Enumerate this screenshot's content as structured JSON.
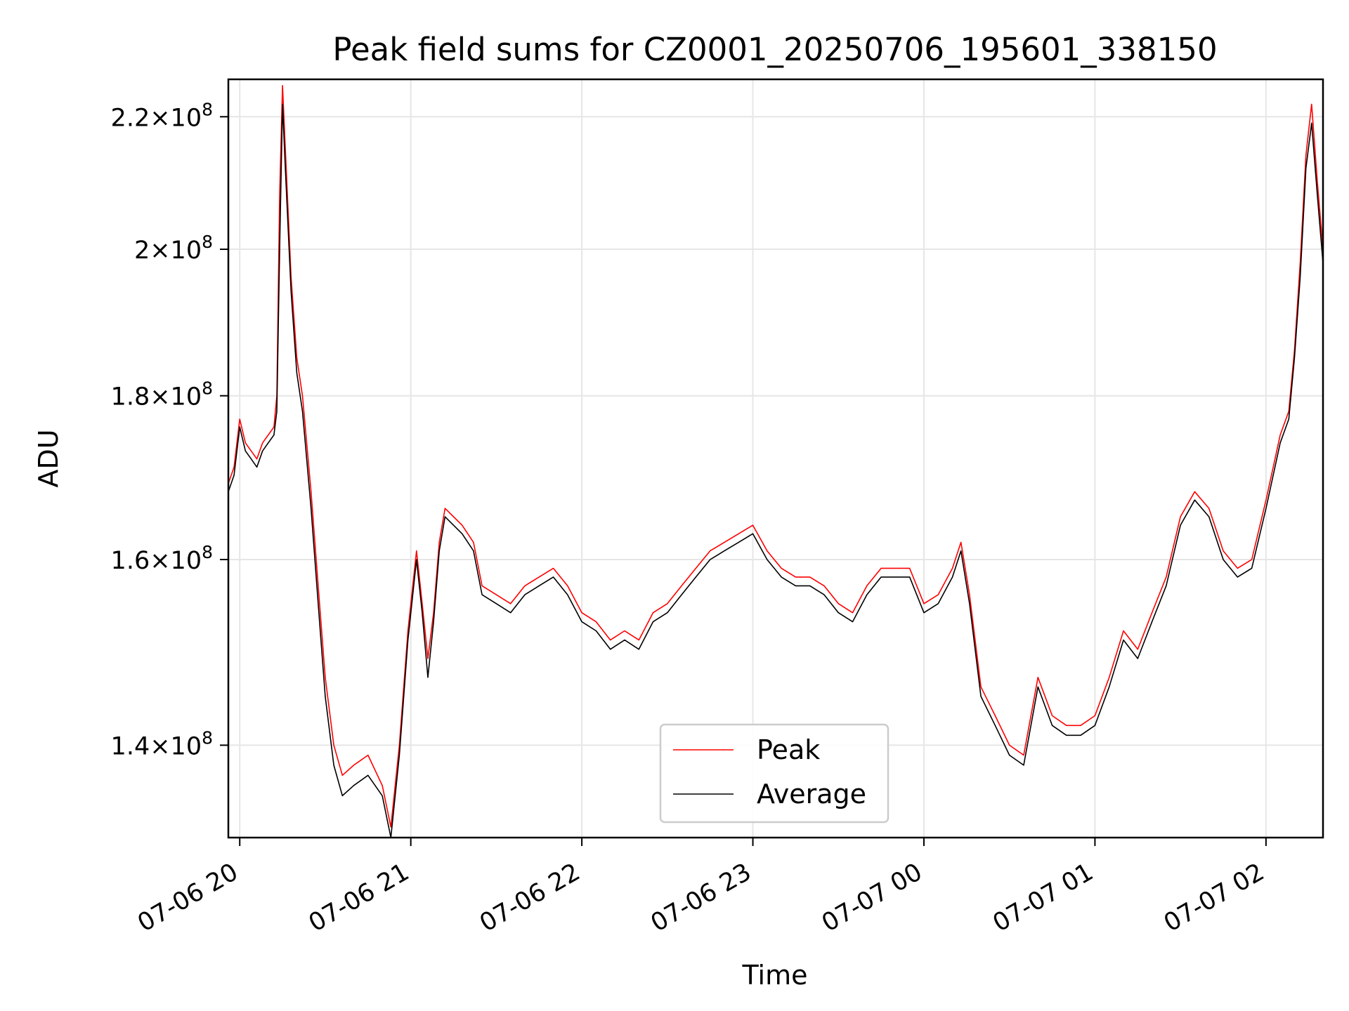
{
  "chart_data": {
    "type": "line",
    "title": "Peak field sums for CZ0001_20250706_195601_338150",
    "xlabel": "Time",
    "ylabel": "ADU",
    "yscale": "log",
    "xlim": [
      "2025-07-06 19:56",
      "2025-07-07 02:20"
    ],
    "ylim": [
      131000000,
      226000000
    ],
    "grid": true,
    "legend_position": "lower center",
    "x_ticks": [
      {
        "value": "2025-07-06 20:00",
        "label": "07-06 20"
      },
      {
        "value": "2025-07-06 21:00",
        "label": "07-06 21"
      },
      {
        "value": "2025-07-06 22:00",
        "label": "07-06 22"
      },
      {
        "value": "2025-07-06 23:00",
        "label": "07-06 23"
      },
      {
        "value": "2025-07-07 00:00",
        "label": "07-07 00"
      },
      {
        "value": "2025-07-07 01:00",
        "label": "07-07 01"
      },
      {
        "value": "2025-07-07 02:00",
        "label": "07-07 02"
      }
    ],
    "y_ticks": [
      {
        "value": 140000000,
        "mantissa": "1.4",
        "times": "×",
        "base": "10",
        "exp": "8"
      },
      {
        "value": 160000000,
        "mantissa": "1.6",
        "times": "×",
        "base": "10",
        "exp": "8"
      },
      {
        "value": 180000000,
        "mantissa": "1.8",
        "times": "×",
        "base": "10",
        "exp": "8"
      },
      {
        "value": 200000000,
        "mantissa": "2",
        "times": "×",
        "base": "10",
        "exp": "8"
      },
      {
        "value": 220000000,
        "mantissa": "2.2",
        "times": "×",
        "base": "10",
        "exp": "8"
      }
    ],
    "series": [
      {
        "name": "Peak",
        "color": "#ff0000",
        "x": [
          "2025-07-06 19:56",
          "2025-07-06 19:58",
          "2025-07-06 20:00",
          "2025-07-06 20:02",
          "2025-07-06 20:04",
          "2025-07-06 20:06",
          "2025-07-06 20:08",
          "2025-07-06 20:10",
          "2025-07-06 20:12",
          "2025-07-06 20:13",
          "2025-07-06 20:14",
          "2025-07-06 20:15",
          "2025-07-06 20:16",
          "2025-07-06 20:18",
          "2025-07-06 20:20",
          "2025-07-06 20:22",
          "2025-07-06 20:25",
          "2025-07-06 20:28",
          "2025-07-06 20:30",
          "2025-07-06 20:33",
          "2025-07-06 20:36",
          "2025-07-06 20:40",
          "2025-07-06 20:45",
          "2025-07-06 20:50",
          "2025-07-06 20:53",
          "2025-07-06 20:56",
          "2025-07-06 20:59",
          "2025-07-06 21:02",
          "2025-07-06 21:04",
          "2025-07-06 21:06",
          "2025-07-06 21:08",
          "2025-07-06 21:10",
          "2025-07-06 21:12",
          "2025-07-06 21:15",
          "2025-07-06 21:18",
          "2025-07-06 21:22",
          "2025-07-06 21:25",
          "2025-07-06 21:30",
          "2025-07-06 21:35",
          "2025-07-06 21:40",
          "2025-07-06 21:45",
          "2025-07-06 21:50",
          "2025-07-06 21:55",
          "2025-07-06 22:00",
          "2025-07-06 22:05",
          "2025-07-06 22:10",
          "2025-07-06 22:15",
          "2025-07-06 22:20",
          "2025-07-06 22:25",
          "2025-07-06 22:30",
          "2025-07-06 22:35",
          "2025-07-06 22:40",
          "2025-07-06 22:45",
          "2025-07-06 22:50",
          "2025-07-06 22:55",
          "2025-07-06 23:00",
          "2025-07-06 23:05",
          "2025-07-06 23:10",
          "2025-07-06 23:15",
          "2025-07-06 23:20",
          "2025-07-06 23:25",
          "2025-07-06 23:30",
          "2025-07-06 23:35",
          "2025-07-06 23:40",
          "2025-07-06 23:45",
          "2025-07-06 23:50",
          "2025-07-06 23:55",
          "2025-07-07 00:00",
          "2025-07-07 00:05",
          "2025-07-07 00:10",
          "2025-07-07 00:13",
          "2025-07-07 00:16",
          "2025-07-07 00:20",
          "2025-07-07 00:25",
          "2025-07-07 00:30",
          "2025-07-07 00:35",
          "2025-07-07 00:40",
          "2025-07-07 00:45",
          "2025-07-07 00:50",
          "2025-07-07 00:55",
          "2025-07-07 01:00",
          "2025-07-07 01:05",
          "2025-07-07 01:10",
          "2025-07-07 01:15",
          "2025-07-07 01:20",
          "2025-07-07 01:25",
          "2025-07-07 01:30",
          "2025-07-07 01:35",
          "2025-07-07 01:40",
          "2025-07-07 01:45",
          "2025-07-07 01:50",
          "2025-07-07 01:55",
          "2025-07-07 02:00",
          "2025-07-07 02:05",
          "2025-07-07 02:08",
          "2025-07-07 02:10",
          "2025-07-07 02:12",
          "2025-07-07 02:14",
          "2025-07-07 02:16",
          "2025-07-07 02:18",
          "2025-07-07 02:20"
        ],
        "values": [
          169000000,
          171000000,
          177000000,
          174000000,
          173000000,
          172000000,
          174000000,
          175000000,
          176000000,
          180000000,
          208000000,
          225000000,
          215000000,
          196000000,
          185000000,
          180000000,
          168000000,
          155000000,
          147000000,
          140000000,
          137000000,
          138000000,
          139000000,
          136000000,
          132000000,
          140000000,
          152000000,
          161000000,
          155000000,
          149000000,
          154000000,
          162000000,
          166000000,
          165000000,
          164000000,
          162000000,
          157000000,
          156000000,
          155000000,
          157000000,
          158000000,
          159000000,
          157000000,
          154000000,
          153000000,
          151000000,
          152000000,
          151000000,
          154000000,
          155000000,
          157000000,
          159000000,
          161000000,
          162000000,
          163000000,
          164000000,
          161000000,
          159000000,
          158000000,
          158000000,
          157000000,
          155000000,
          154000000,
          157000000,
          159000000,
          159000000,
          159000000,
          155000000,
          156000000,
          159000000,
          162000000,
          156000000,
          146000000,
          143000000,
          140000000,
          139000000,
          147000000,
          143000000,
          142000000,
          142000000,
          143000000,
          147000000,
          152000000,
          150000000,
          154000000,
          158000000,
          165000000,
          168000000,
          166000000,
          161000000,
          159000000,
          160000000,
          167000000,
          175000000,
          178000000,
          186000000,
          198000000,
          214000000,
          222000000,
          210000000,
          200000000
        ]
      },
      {
        "name": "Average",
        "color": "#000000",
        "x": [
          "2025-07-06 19:56",
          "2025-07-06 19:58",
          "2025-07-06 20:00",
          "2025-07-06 20:02",
          "2025-07-06 20:04",
          "2025-07-06 20:06",
          "2025-07-06 20:08",
          "2025-07-06 20:10",
          "2025-07-06 20:12",
          "2025-07-06 20:13",
          "2025-07-06 20:14",
          "2025-07-06 20:15",
          "2025-07-06 20:16",
          "2025-07-06 20:18",
          "2025-07-06 20:20",
          "2025-07-06 20:22",
          "2025-07-06 20:25",
          "2025-07-06 20:28",
          "2025-07-06 20:30",
          "2025-07-06 20:33",
          "2025-07-06 20:36",
          "2025-07-06 20:40",
          "2025-07-06 20:45",
          "2025-07-06 20:50",
          "2025-07-06 20:53",
          "2025-07-06 20:56",
          "2025-07-06 20:59",
          "2025-07-06 21:02",
          "2025-07-06 21:04",
          "2025-07-06 21:06",
          "2025-07-06 21:08",
          "2025-07-06 21:10",
          "2025-07-06 21:12",
          "2025-07-06 21:15",
          "2025-07-06 21:18",
          "2025-07-06 21:22",
          "2025-07-06 21:25",
          "2025-07-06 21:30",
          "2025-07-06 21:35",
          "2025-07-06 21:40",
          "2025-07-06 21:45",
          "2025-07-06 21:50",
          "2025-07-06 21:55",
          "2025-07-06 22:00",
          "2025-07-06 22:05",
          "2025-07-06 22:10",
          "2025-07-06 22:15",
          "2025-07-06 22:20",
          "2025-07-06 22:25",
          "2025-07-06 22:30",
          "2025-07-06 22:35",
          "2025-07-06 22:40",
          "2025-07-06 22:45",
          "2025-07-06 22:50",
          "2025-07-06 22:55",
          "2025-07-06 23:00",
          "2025-07-06 23:05",
          "2025-07-06 23:10",
          "2025-07-06 23:15",
          "2025-07-06 23:20",
          "2025-07-06 23:25",
          "2025-07-06 23:30",
          "2025-07-06 23:35",
          "2025-07-06 23:40",
          "2025-07-06 23:45",
          "2025-07-06 23:50",
          "2025-07-06 23:55",
          "2025-07-07 00:00",
          "2025-07-07 00:05",
          "2025-07-07 00:10",
          "2025-07-07 00:13",
          "2025-07-07 00:16",
          "2025-07-07 00:20",
          "2025-07-07 00:25",
          "2025-07-07 00:30",
          "2025-07-07 00:35",
          "2025-07-07 00:40",
          "2025-07-07 00:45",
          "2025-07-07 00:50",
          "2025-07-07 00:55",
          "2025-07-07 01:00",
          "2025-07-07 01:05",
          "2025-07-07 01:10",
          "2025-07-07 01:15",
          "2025-07-07 01:20",
          "2025-07-07 01:25",
          "2025-07-07 01:30",
          "2025-07-07 01:35",
          "2025-07-07 01:40",
          "2025-07-07 01:45",
          "2025-07-07 01:50",
          "2025-07-07 01:55",
          "2025-07-07 02:00",
          "2025-07-07 02:05",
          "2025-07-07 02:08",
          "2025-07-07 02:10",
          "2025-07-07 02:12",
          "2025-07-07 02:14",
          "2025-07-07 02:16",
          "2025-07-07 02:18",
          "2025-07-07 02:20"
        ],
        "values": [
          168000000,
          170000000,
          176000000,
          173000000,
          172000000,
          171000000,
          173000000,
          174000000,
          175000000,
          178000000,
          200000000,
          222000000,
          212000000,
          194000000,
          183000000,
          178000000,
          166000000,
          153000000,
          145000000,
          138000000,
          135000000,
          136000000,
          137000000,
          135000000,
          131000000,
          139000000,
          151000000,
          160000000,
          154000000,
          147000000,
          153000000,
          161000000,
          165000000,
          164000000,
          163000000,
          161000000,
          156000000,
          155000000,
          154000000,
          156000000,
          157000000,
          158000000,
          156000000,
          153000000,
          152000000,
          150000000,
          151000000,
          150000000,
          153000000,
          154000000,
          156000000,
          158000000,
          160000000,
          161000000,
          162000000,
          163000000,
          160000000,
          158000000,
          157000000,
          157000000,
          156000000,
          154000000,
          153000000,
          156000000,
          158000000,
          158000000,
          158000000,
          154000000,
          155000000,
          158000000,
          161000000,
          155000000,
          145000000,
          142000000,
          139000000,
          138000000,
          146000000,
          142000000,
          141000000,
          141000000,
          142000000,
          146000000,
          151000000,
          149000000,
          153000000,
          157000000,
          164000000,
          167000000,
          165000000,
          160000000,
          158000000,
          159000000,
          166000000,
          174000000,
          177000000,
          185000000,
          196000000,
          212000000,
          219000000,
          208000000,
          198000000
        ]
      }
    ]
  }
}
